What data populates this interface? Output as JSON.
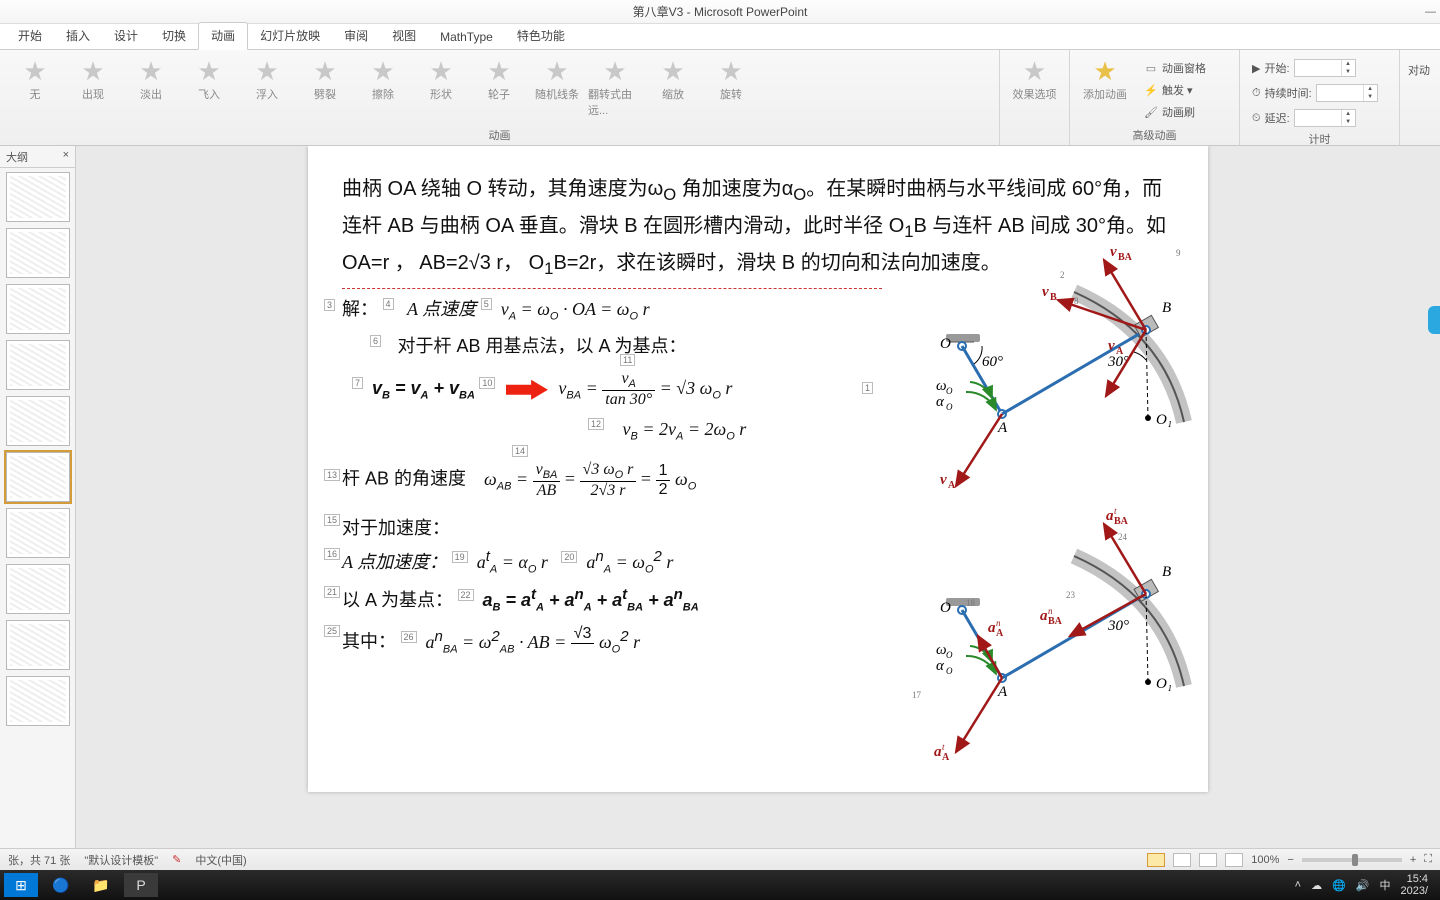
{
  "window": {
    "title": "第八章V3 - Microsoft PowerPoint"
  },
  "tabs": [
    "开始",
    "插入",
    "设计",
    "切换",
    "动画",
    "幻灯片放映",
    "审阅",
    "视图",
    "MathType",
    "特色功能"
  ],
  "active_tab": 4,
  "ribbon": {
    "anim_group_label": "动画",
    "adv_group_label": "高级动画",
    "timing_group_label": "计时",
    "effects_label": "效果选项",
    "add_anim_label": "添加动画",
    "right_label": "对动",
    "presets": [
      "无",
      "出现",
      "淡出",
      "飞入",
      "浮入",
      "劈裂",
      "擦除",
      "形状",
      "轮子",
      "随机线条",
      "翻转式由远...",
      "缩放",
      "旋转"
    ],
    "adv_items": {
      "pane": "动画窗格",
      "trigger": "触发 ▾",
      "painter": "动画刷"
    },
    "timing": {
      "start_l": "开始:",
      "dur_l": "持续时间:",
      "delay_l": "延迟:"
    }
  },
  "side": {
    "tab": "大纲",
    "close": "×"
  },
  "thumbs": {
    "count": 10,
    "selected": 5
  },
  "slide": {
    "problem": "曲柄 OA 绕轴 O 转动，其角速度为ω<sub>O</sub> 角加速度为α<sub>O</sub>。在某瞬时曲柄与水平线间成 60°角，而连杆 AB 与曲柄 OA 垂直。滑块 B 在圆形槽内滑动，此时半径 O<sub>1</sub>B 与连杆 AB 间成 30°角。如 OA=r ， AB=2√3 r， O<sub>1</sub>B=2r，求在该瞬时，滑块 B 的切向和法向加速度。",
    "sol_pre": "解：",
    "l1_pre": "A 点速度",
    "l1_eq": "v<sub>A</sub> = ω<sub>O</sub> · OA = ω<sub>O</sub> r",
    "l2": "对于杆 AB 用基点法，以 A 为基点：",
    "l3_eq": "<b><i>v</i><sub>B</sub> = <i>v</i><sub>A</sub> + <i>v</i><sub>BA</sub></b>",
    "l3b_pre": "v<sub>BA</sub> =",
    "l3b_frac_n": "v<sub>A</sub>",
    "l3b_frac_d": "tan 30°",
    "l3b_post": "= √3 ω<sub>O</sub> r",
    "l3c": "v<sub>B</sub> = 2v<sub>A</sub> = 2ω<sub>O</sub> r",
    "l4_pre": "杆 AB 的角速度",
    "l4_a": "ω<sub>AB</sub> =",
    "l4_f1n": "v<sub>BA</sub>",
    "l4_f1d": "AB",
    "l4_f2n": "√3 ω<sub>O</sub> r",
    "l4_f2d": "2√3 r",
    "l4_f3n": "1",
    "l4_f3d": "2",
    "l4_post": "ω<sub>O</sub>",
    "l5": "对于加速度：",
    "l6_pre": "A 点加速度：",
    "l6a": "a<sup>t</sup><sub>A</sub> = α<sub>O</sub> r",
    "l6b": "a<sup>n</sup><sub>A</sub> = ω<sub>O</sub><sup>2</sup> r",
    "l7_pre": "以 A 为基点：",
    "l7_eq": "<b><i>a</i><sub>B</sub> = <i>a</i><sup>t</sup><sub>A</sub> + <i>a</i><sup>n</sup><sub>A</sub> + <i>a</i><sup>t</sup><sub>BA</sub> + <i>a</i><sup>n</sup><sub>BA</sub></b>",
    "l8_pre": "其中：",
    "l8_eq_a": "a<sup>n</sup><sub>BA</sub> = ω<sup>2</sup><sub>AB</sub> · AB =",
    "l8_fn": "√3",
    "l8_fd": "",
    "l8_post": "ω<sub>O</sub><sup>2</sup> r",
    "tags": [
      "1",
      "2",
      "3",
      "4",
      "5",
      "6",
      "7",
      "8",
      "9",
      "10",
      "11",
      "12",
      "13",
      "14",
      "15",
      "16",
      "17",
      "18",
      "19",
      "20",
      "21",
      "22",
      "23",
      "24",
      "25",
      "26"
    ],
    "diag1": {
      "O": "O",
      "A": "A",
      "B": "B",
      "O1": "O₁",
      "ang60": "60°",
      "ang30": "30°",
      "wO": "ω<tspan font-style='italic' font-size='10'>O</tspan>",
      "aO": "α<tspan font-style='italic' font-size='10'>O</tspan>",
      "vA": "v",
      "vB": "v",
      "vBA": "v"
    },
    "diag2": {
      "aBA_t": "a",
      "aBA_n": "a",
      "aA_n": "a",
      "aA_t": "a"
    }
  },
  "status": {
    "slide_info": "张，共 71 张",
    "template": "\"默认设计模板\"",
    "lang": "中文(中国)",
    "zoom": "100%"
  },
  "tray": {
    "ime": "中",
    "time": "15:4",
    "date": "2023/"
  }
}
